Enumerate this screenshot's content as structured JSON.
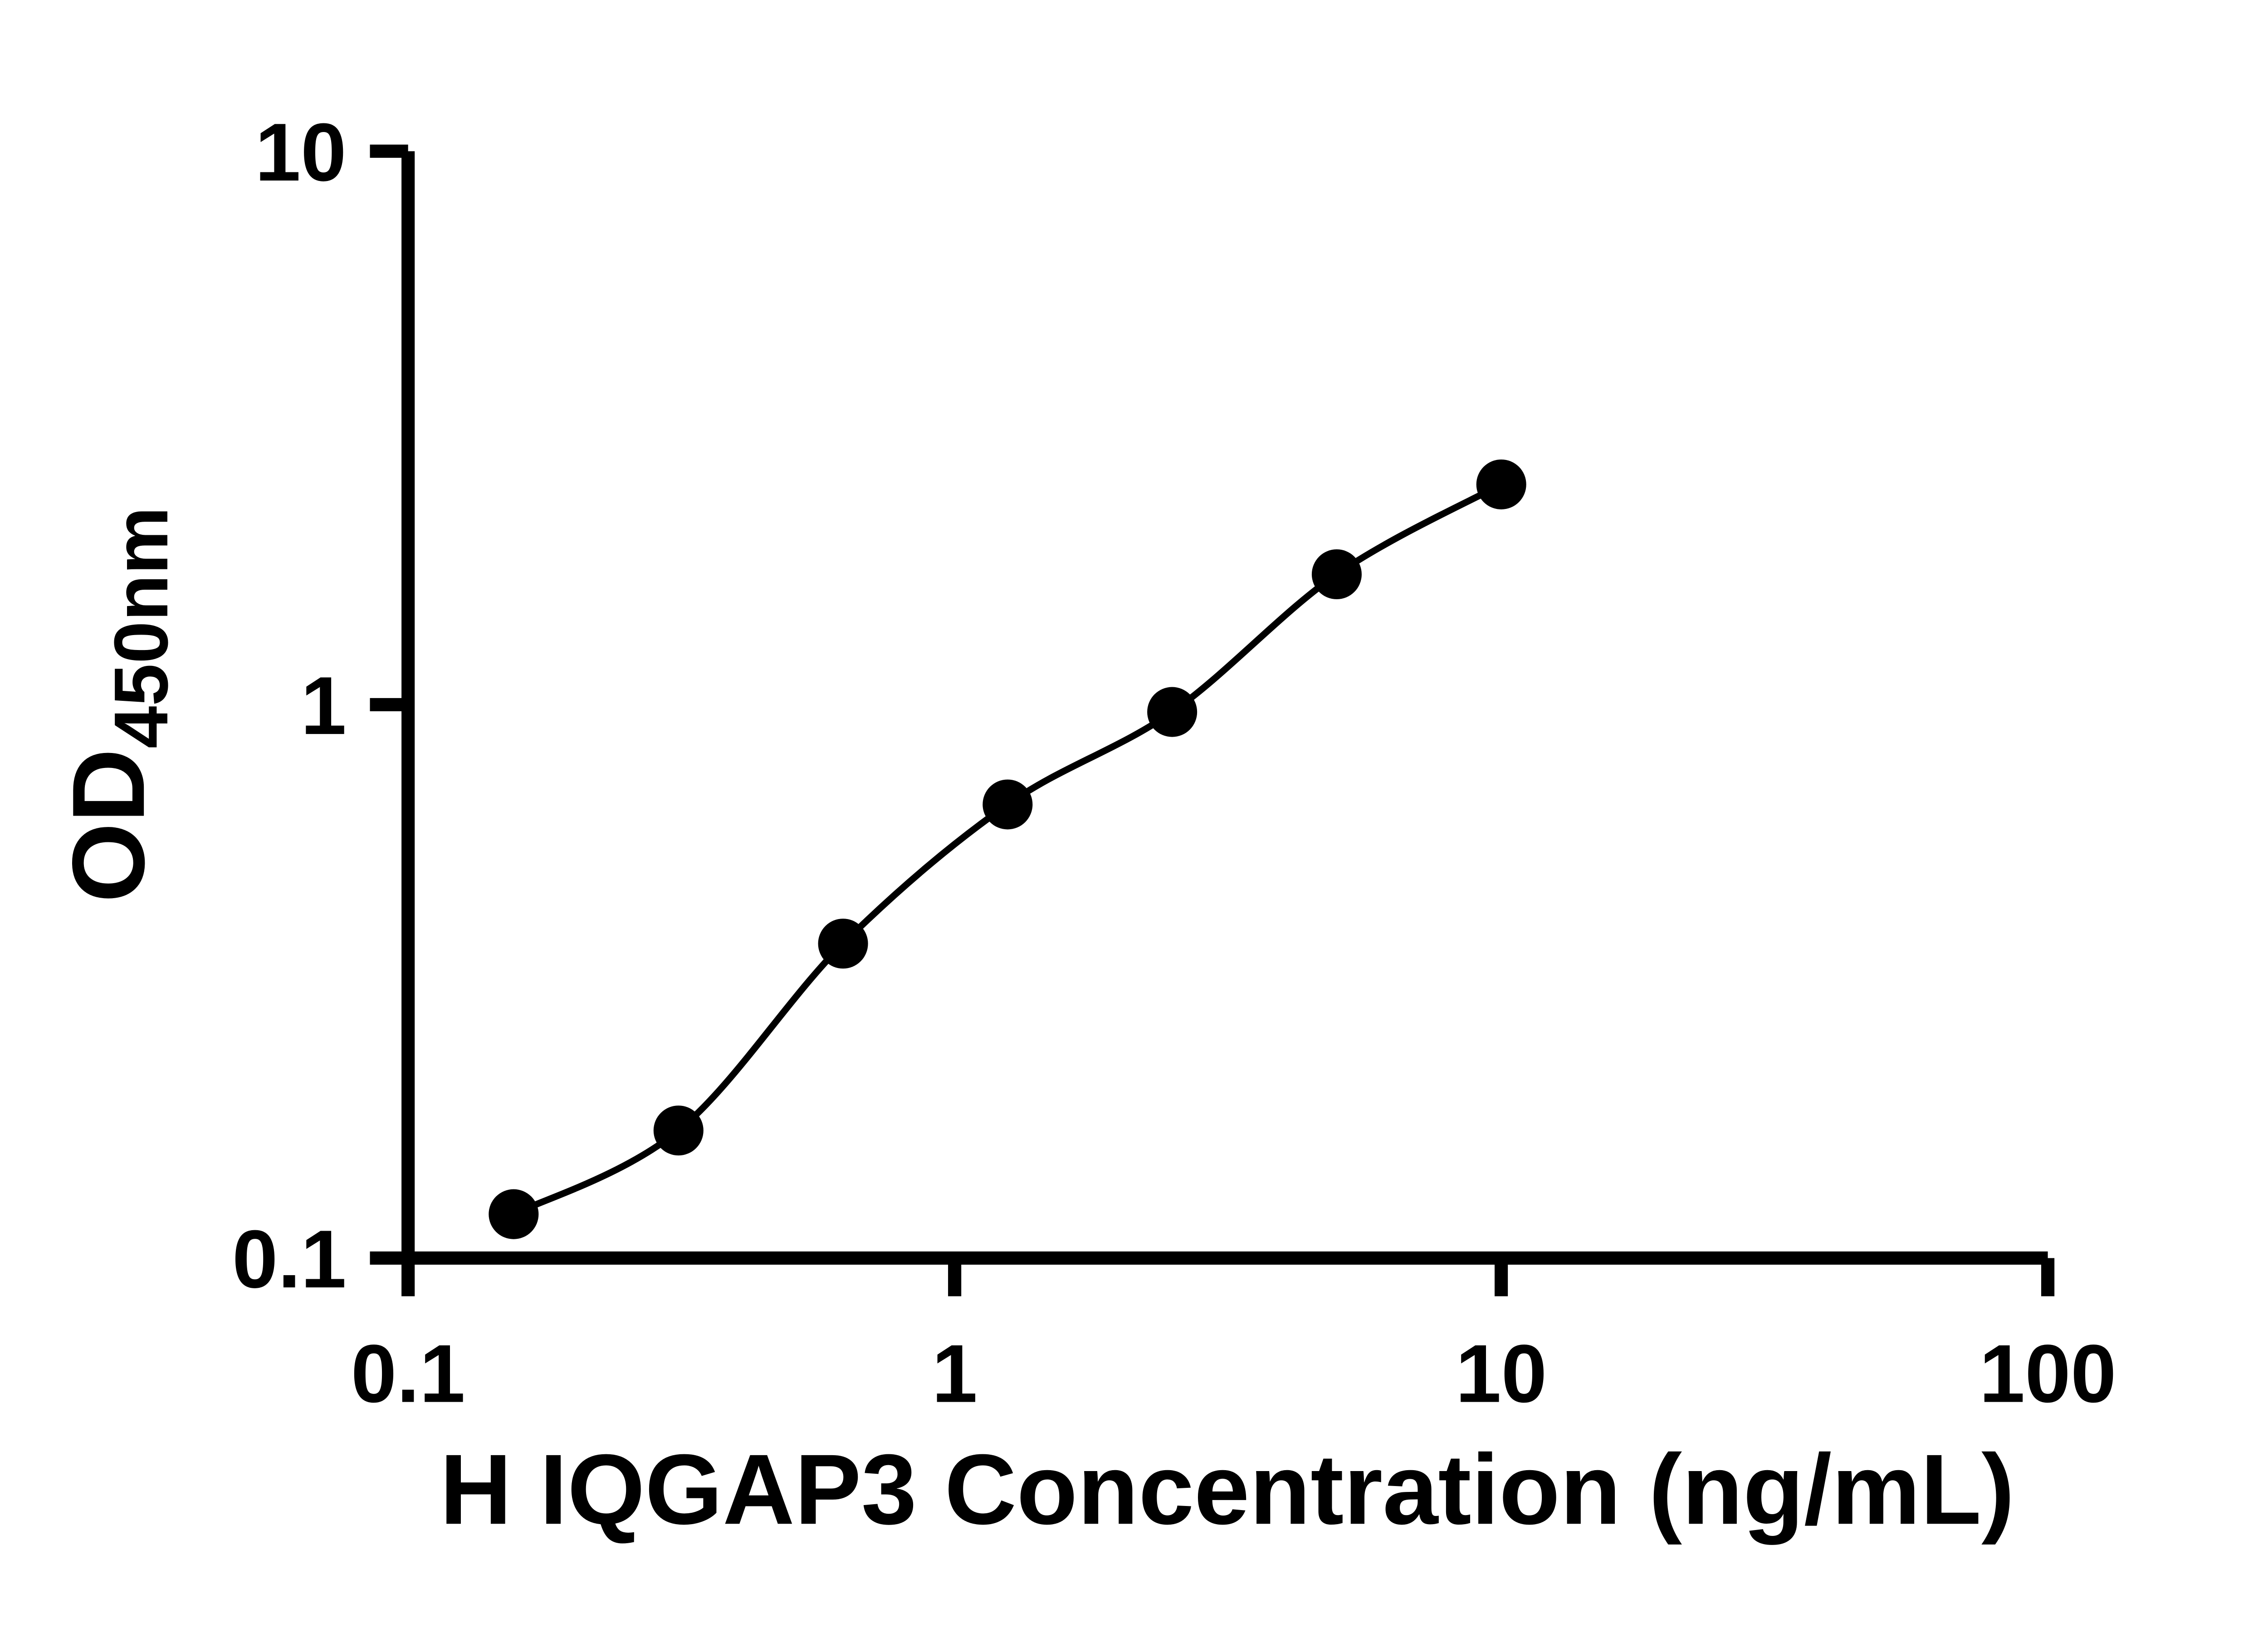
{
  "chart_data": {
    "type": "scatter",
    "title": "",
    "xlabel": "H IQGAP3 Concentration (ng/mL)",
    "ylabel_main": "OD",
    "ylabel_sub": "450nm",
    "x_scale": "log",
    "y_scale": "log",
    "xlim": [
      0.1,
      100
    ],
    "ylim": [
      0.1,
      10
    ],
    "x": [
      0.156,
      0.3125,
      0.625,
      1.25,
      2.5,
      5,
      10
    ],
    "y": [
      0.12,
      0.17,
      0.37,
      0.66,
      0.97,
      1.72,
      2.5
    ],
    "x_ticks": [
      {
        "value": 0.1,
        "label": "0.1"
      },
      {
        "value": 1,
        "label": "1"
      },
      {
        "value": 10,
        "label": "10"
      },
      {
        "value": 100,
        "label": "100"
      }
    ],
    "y_ticks": [
      {
        "value": 0.1,
        "label": "0.1"
      },
      {
        "value": 1,
        "label": "1"
      },
      {
        "value": 10,
        "label": "10"
      }
    ],
    "grid": false,
    "legend": false,
    "axis_color": "#000000",
    "line_color": "#000000",
    "marker_color": "#000000"
  }
}
